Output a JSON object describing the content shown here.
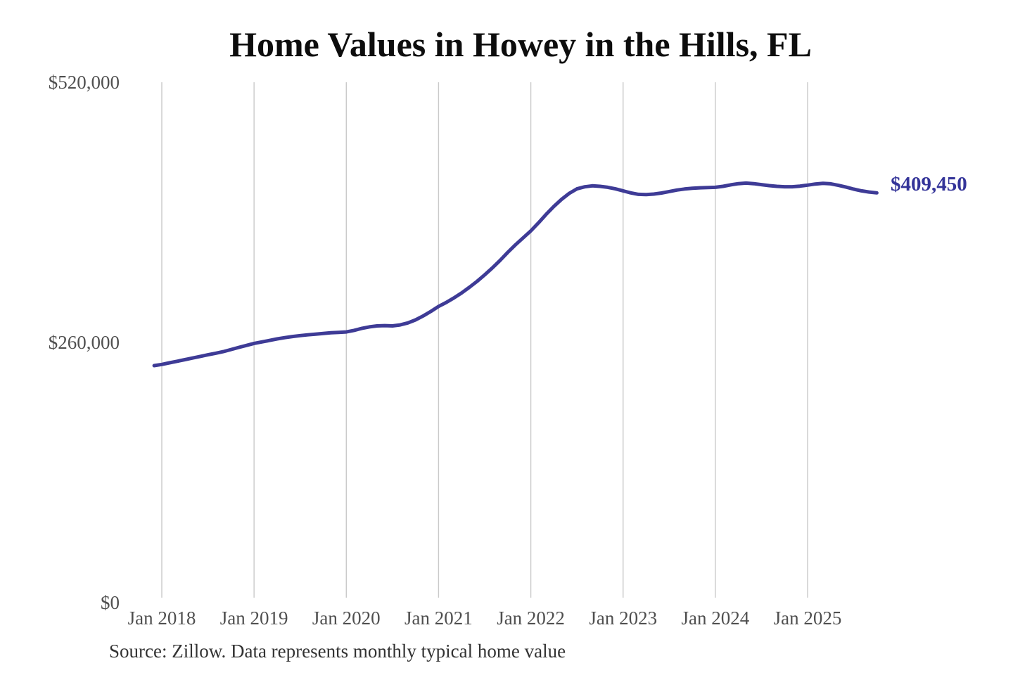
{
  "chart_data": {
    "type": "line",
    "title": "Home Values in Howey in the Hills, FL",
    "source_note": "Source: Zillow. Data represents monthly typical home value",
    "series_name": "Monthly typical home value",
    "latest_value_label": "$409,450",
    "latest_value": 409450,
    "frequency": "monthly",
    "start_month": "2017-12",
    "end_month": "2025-10",
    "x_tick_labels": [
      "Jan 2018",
      "Jan 2019",
      "Jan 2020",
      "Jan 2021",
      "Jan 2022",
      "Jan 2023",
      "Jan 2024",
      "Jan 2025"
    ],
    "y_tick_labels": [
      "$0",
      "$260,000",
      "$520,000"
    ],
    "y_ticks": [
      0,
      260000,
      520000
    ],
    "ylim": [
      0,
      520000
    ],
    "grid": "vertical-only",
    "legend": "none",
    "colors": {
      "line": "#3e3b96",
      "latest_value_label": "#343499",
      "gridline": "#c9c9c9",
      "axis_labels": "#4f4f4f",
      "title": "#0d0d0d",
      "source_note": "#333333",
      "background": "#ffffff"
    },
    "values": [
      236800,
      238000,
      239600,
      241200,
      242800,
      244400,
      246000,
      247600,
      249200,
      250800,
      252900,
      255000,
      257000,
      259000,
      260500,
      262000,
      263500,
      264800,
      265900,
      266800,
      267600,
      268300,
      269000,
      269600,
      270000,
      270500,
      272000,
      274000,
      275500,
      276500,
      276800,
      276500,
      277500,
      279500,
      282500,
      286500,
      291000,
      296000,
      300000,
      304500,
      309500,
      315000,
      321000,
      327500,
      334500,
      342000,
      350000,
      357500,
      364500,
      371500,
      379500,
      388000,
      396000,
      403000,
      409000,
      413500,
      415500,
      416500,
      416000,
      415000,
      413500,
      411500,
      409500,
      408000,
      407800,
      408300,
      409300,
      410800,
      412300,
      413300,
      414000,
      414500,
      414700,
      415000,
      416000,
      417500,
      418700,
      419200,
      418700,
      417700,
      416700,
      416000,
      415600,
      415600,
      416200,
      417200,
      418300,
      419000,
      418500,
      417000,
      415200,
      413200,
      411500,
      410300,
      409450
    ]
  }
}
